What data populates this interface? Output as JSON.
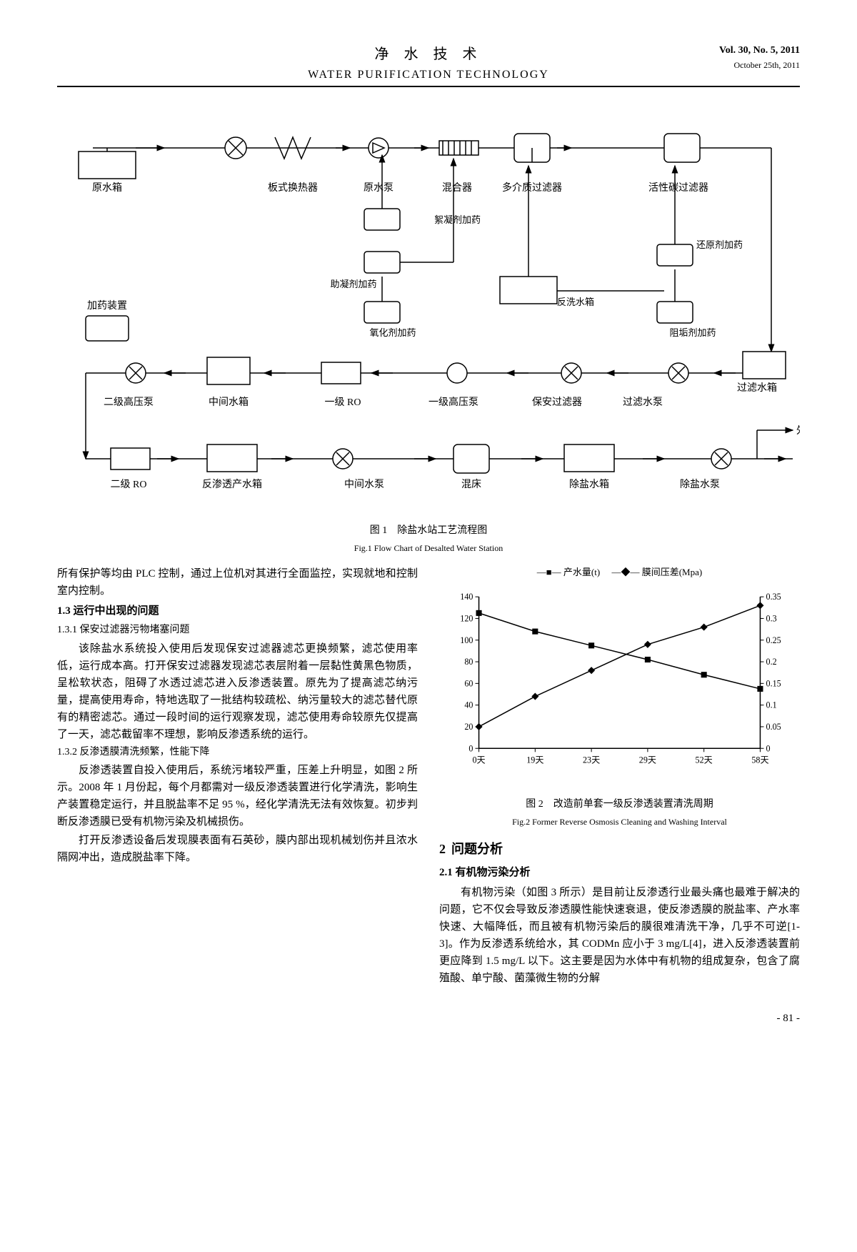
{
  "header": {
    "title_cn": "净 水 技 术",
    "title_en": "WATER PURIFICATION TECHNOLOGY",
    "volume": "Vol. 30, No. 5, 2011",
    "date": "October 25th, 2011"
  },
  "flow_diagram": {
    "type": "flowchart",
    "caption_cn": "图 1　除盐水站工艺流程图",
    "caption_en": "Fig.1  Flow Chart of Desalted Water Station",
    "nodes": {
      "raw_tank": "原水箱",
      "plate_hx": "板式换热器",
      "raw_pump": "原水泵",
      "mixer": "混合器",
      "multi_filter": "多介质过滤器",
      "carbon_filter": "活性碳过滤器",
      "floc_dose": "絮凝剂加药",
      "coag_dose": "助凝剂加药",
      "reduce_dose": "还原剂加药",
      "oxid_dose": "氧化剂加药",
      "antiscale_dose": "阻垢剂加药",
      "backwash_tank": "反洗水箱",
      "dose_device": "加药装置",
      "filter_tank": "过滤水箱",
      "filter_pump": "过滤水泵",
      "security_filter": "保安过滤器",
      "hp_pump1": "一级高压泵",
      "ro1": "一级 RO",
      "mid_tank": "中间水箱",
      "hp_pump2": "二级高压泵",
      "ro2": "二级 RO",
      "ro_tank": "反渗透产水箱",
      "mid_pump": "中间水泵",
      "mixed_bed": "混床",
      "desalt_tank": "除盐水箱",
      "desalt_pump": "除盐水泵",
      "external": "外供"
    },
    "stroke_color": "#000000",
    "background_color": "#ffffff",
    "line_width": 1.5
  },
  "left_column": {
    "para1": "所有保护等均由 PLC 控制，通过上位机对其进行全面监控，实现就地和控制室内控制。",
    "h_1_3": "1.3 运行中出现的问题",
    "h_1_3_1": "1.3.1 保安过滤器污物堵塞问题",
    "para2": "该除盐水系统投入使用后发现保安过滤器滤芯更换频繁，滤芯使用率低，运行成本高。打开保安过滤器发现滤芯表层附着一层黏性黄黑色物质，呈松软状态，阻碍了水透过滤芯进入反渗透装置。原先为了提高滤芯纳污量，提高使用寿命，特地选取了一批结构较疏松、纳污量较大的滤芯替代原有的精密滤芯。通过一段时间的运行观察发现，滤芯使用寿命较原先仅提高了一天，滤芯截留率不理想，影响反渗透系统的运行。",
    "h_1_3_2": "1.3.2 反渗透膜清洗频繁，性能下降",
    "para3": "反渗透装置自投入使用后，系统污堵较严重，压差上升明显，如图 2 所示。2008 年 1 月份起，每个月都需对一级反渗透装置进行化学清洗，影响生产装置稳定运行，并且脱盐率不足 95 %，经化学清洗无法有效恢复。初步判断反渗透膜已受有机物污染及机械损伤。",
    "para4": "打开反渗透设备后发现膜表面有石英砂，膜内部出现机械划伤并且浓水隔网冲出，造成脱盐率下降。"
  },
  "right_column": {
    "chart": {
      "type": "line",
      "legend_series1": "产水量(t)",
      "legend_series2": "膜间压差(Mpa)",
      "legend_marker1": "square",
      "legend_marker2": "diamond",
      "x_labels": [
        "0天",
        "19天",
        "23天",
        "29天",
        "52天",
        "58天"
      ],
      "y1_values": [
        125,
        108,
        95,
        82,
        68,
        55
      ],
      "y2_values": [
        0.05,
        0.12,
        0.18,
        0.24,
        0.28,
        0.33
      ],
      "y1_lim": [
        0,
        140
      ],
      "y1_ticks": [
        0,
        20,
        40,
        60,
        80,
        100,
        120,
        140
      ],
      "y2_lim": [
        0,
        0.35
      ],
      "y2_ticks": [
        0,
        0.05,
        0.1,
        0.15,
        0.2,
        0.25,
        0.3,
        0.35
      ],
      "line_color": "#000000",
      "marker_fill": "#000000",
      "background_color": "#ffffff",
      "caption_cn": "图 2　改造前单套一级反渗透装置清洗周期",
      "caption_en": "Fig.2  Former Reverse Osmosis Cleaning and Washing Interval",
      "axis_fontsize": 12,
      "line_width": 1.5
    },
    "h_2": "问题分析",
    "h_2_num": "2",
    "h_2_1": "2.1 有机物污染分析",
    "para5": "有机物污染（如图 3 所示）是目前让反渗透行业最头痛也最难于解决的问题，它不仅会导致反渗透膜性能快速衰退，使反渗透膜的脱盐率、产水率快速、大幅降低，而且被有机物污染后的膜很难清洗干净，几乎不可逆[1-3]。作为反渗透系统给水，其 CODMn 应小于 3 mg/L[4]，进入反渗透装置前更应降到 1.5 mg/L 以下。这主要是因为水体中有机物的组成复杂，包含了腐殖酸、单宁酸、菌藻微生物的分解"
  },
  "page_number": "- 81 -"
}
